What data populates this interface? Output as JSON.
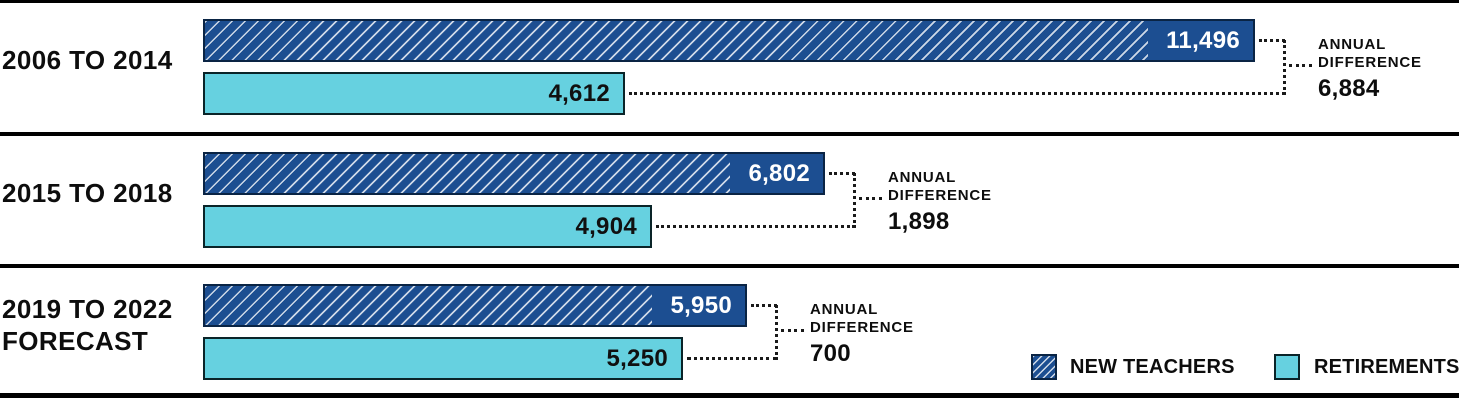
{
  "chart_data": {
    "type": "bar",
    "orientation": "horizontal",
    "categories": [
      "2006 TO 2014",
      "2015 TO 2018",
      "2019 TO 2022 FORECAST"
    ],
    "series": [
      {
        "name": "NEW TEACHERS",
        "values": [
          11496,
          6802,
          5950
        ],
        "color": "#1C4E91",
        "pattern": "diagonal-hatch"
      },
      {
        "name": "RETIREMENTS",
        "values": [
          4612,
          4904,
          5250
        ],
        "color": "#66D1E0",
        "pattern": "solid"
      }
    ],
    "annotations": [
      {
        "label": "ANNUAL DIFFERENCE",
        "value": 6884
      },
      {
        "label": "ANNUAL DIFFERENCE",
        "value": 1898
      },
      {
        "label": "ANNUAL DIFFERENCE",
        "value": 700
      }
    ],
    "xlim": [
      0,
      11496
    ],
    "grid": false,
    "value_labels": true,
    "legend_position": "bottom-right"
  },
  "rows": [
    {
      "label_line1": "2006 TO 2014",
      "label_line2": "",
      "new_teachers": 11496,
      "new_teachers_display": "11,496",
      "retirements": 4612,
      "retirements_display": "4,612",
      "diff_label": "ANNUAL DIFFERENCE",
      "diff_display": "6,884"
    },
    {
      "label_line1": "2015 TO 2018",
      "label_line2": "",
      "new_teachers": 6802,
      "new_teachers_display": "6,802",
      "retirements": 4904,
      "retirements_display": "4,904",
      "diff_label": "ANNUAL DIFFERENCE",
      "diff_display": "1,898"
    },
    {
      "label_line1": "2019 TO 2022",
      "label_line2": "FORECAST",
      "new_teachers": 5950,
      "new_teachers_display": "5,950",
      "retirements": 5250,
      "retirements_display": "5,250",
      "diff_label": "ANNUAL DIFFERENCE",
      "diff_display": "700"
    }
  ],
  "legend": [
    {
      "label": "NEW TEACHERS"
    },
    {
      "label": "RETIREMENTS"
    }
  ],
  "colors": {
    "new_teachers": "#1C4E91",
    "retirements": "#66D1E0"
  }
}
